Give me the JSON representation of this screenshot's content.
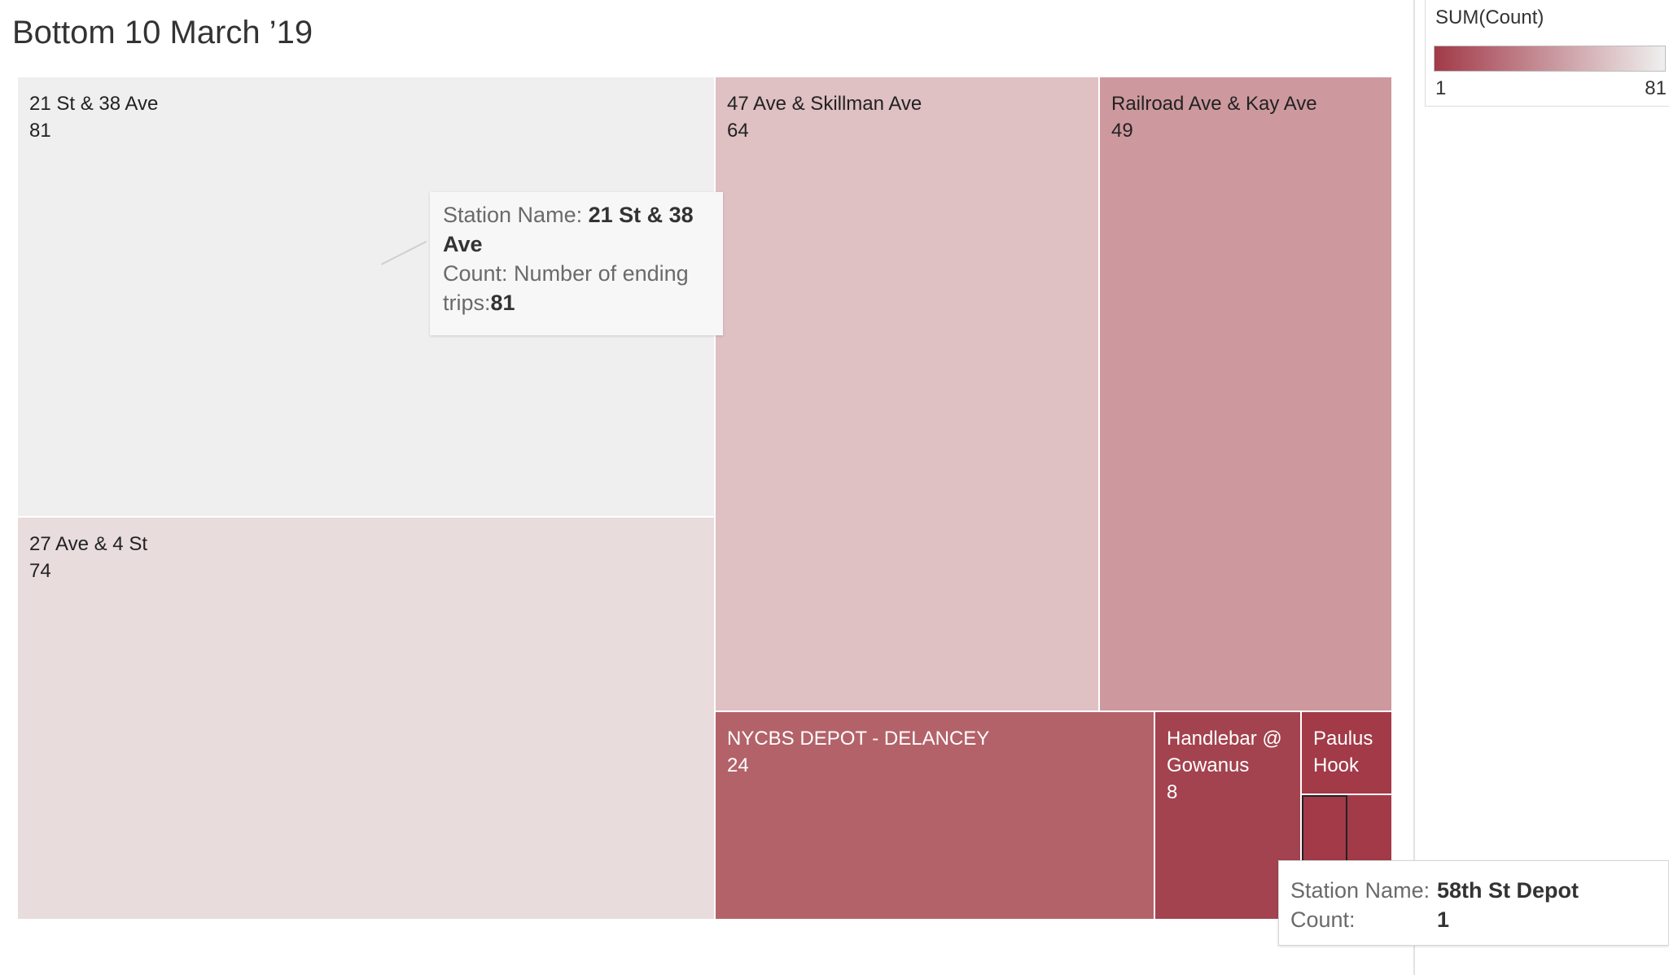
{
  "title": "Bottom 10 March ’19",
  "legend": {
    "title": "SUM(Count)",
    "min_label": "1",
    "max_label": "81",
    "color_low": "#a23a48",
    "color_high": "#efefef"
  },
  "chart_data": {
    "type": "treemap",
    "measure": "Count",
    "items": [
      {
        "name": "21 St & 38 Ave",
        "value": 81,
        "color": "#efefef",
        "label_color": "#222222"
      },
      {
        "name": "27 Ave & 4 St",
        "value": 74,
        "color": "#e8dcdd",
        "label_color": "#222222"
      },
      {
        "name": "47 Ave & Skillman Ave",
        "value": 64,
        "color": "#dfc0c3",
        "label_color": "#222222"
      },
      {
        "name": "Railroad Ave & Kay Ave",
        "value": 49,
        "color": "#cd999e",
        "label_color": "#222222"
      },
      {
        "name": "NYCBS DEPOT - DELANCEY",
        "value": 24,
        "color": "#b36269",
        "label_color": "#ffffff"
      },
      {
        "name": "Handlebar @ Gowanus",
        "value": 8,
        "color": "#a3434f",
        "label_color": "#ffffff"
      },
      {
        "name": "Paulus Hook",
        "value": null,
        "color": "#a23a48",
        "label_color": "#ffffff"
      },
      {
        "name": "58th St Depot",
        "value": 1,
        "color": "#a23a48",
        "label_color": "#ffffff"
      },
      {
        "name": "",
        "value": null,
        "color": "#a23a48",
        "label_color": "#ffffff"
      }
    ]
  },
  "tooltip_main": {
    "name_label": "Station Name:",
    "name_value": "21 St & 38 Ave",
    "count_label": "Count: Number of ending trips:",
    "count_value": "81"
  },
  "tooltip_hover": {
    "name_label": "Station Name:",
    "name_value": "58th St Depot",
    "count_label": "Count:",
    "count_value": "1"
  }
}
